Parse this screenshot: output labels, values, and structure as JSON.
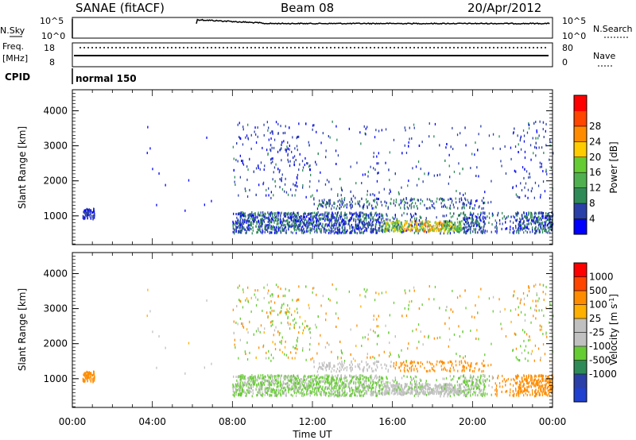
{
  "header": {
    "station": "SANAE (fitACF)",
    "beam": "Beam 08",
    "date": "20/Apr/2012"
  },
  "status_panel": {
    "nsky_label": "N.Sky",
    "nsearch_label": "N.Search",
    "freq_label_1": "Freq.",
    "freq_label_2": "[MHz]",
    "nave_label": "Nave",
    "cpid_label": "CPID",
    "cpid_value": "normal 150",
    "noise_ticks_left": [
      "10^5",
      "10^0"
    ],
    "noise_ticks_right": [
      "10^5",
      "10^0"
    ],
    "freq_ticks": [
      "18",
      "8"
    ],
    "nave_ticks": [
      "80",
      "0"
    ]
  },
  "colors": {
    "power_scale": [
      "#0000ff",
      "#2b3fa8",
      "#2e8b57",
      "#50b050",
      "#66cc33",
      "#ffcc00",
      "#ff8c00",
      "#ff4500",
      "#ff0000"
    ],
    "velocity_scale": [
      "#ff0000",
      "#ff4500",
      "#ff8c00",
      "#ffb000",
      "#c0c0c0",
      "#c0c0c0",
      "#66cc33",
      "#2e8b57",
      "#2b3fa8",
      "#2040d0"
    ]
  },
  "chart_data": [
    {
      "type": "heatmap",
      "name": "power",
      "ylabel": "Slant Range [km]",
      "colorbar_label": "Power [dB]",
      "colorbar_ticks": [
        "4",
        "8",
        "12",
        "16",
        "20",
        "24",
        "28"
      ],
      "xlim": [
        0,
        24
      ],
      "ylim": [
        180,
        4600
      ],
      "yticks": [
        "1000",
        "2000",
        "3000",
        "4000"
      ],
      "xticks": [
        "00:00",
        "04:00",
        "08:00",
        "12:00",
        "16:00",
        "20:00",
        "00:00"
      ]
    },
    {
      "type": "heatmap",
      "name": "velocity",
      "ylabel": "Slant Range [km]",
      "colorbar_label": "Velocity [m s^-1]",
      "colorbar_ticks": [
        "1000",
        "500",
        "100",
        "25",
        "-25",
        "-100",
        "-500",
        "-1000"
      ],
      "xlim": [
        0,
        24
      ],
      "ylim": [
        180,
        4600
      ],
      "yticks": [
        "1000",
        "2000",
        "3000",
        "4000"
      ],
      "xticks": [
        "00:00",
        "04:00",
        "08:00",
        "12:00",
        "16:00",
        "20:00",
        "00:00"
      ],
      "xlabel": "Time UT"
    }
  ]
}
